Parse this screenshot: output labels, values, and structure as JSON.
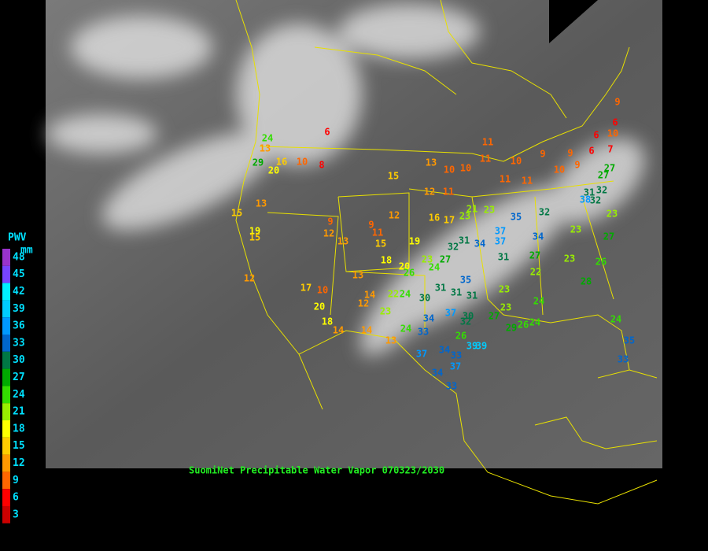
{
  "legend": {
    "title": "PWV",
    "unit": "mm",
    "scale": [
      {
        "value": 48,
        "color": "#9933cc"
      },
      {
        "value": 45,
        "color": "#7744ff"
      },
      {
        "value": 42,
        "color": "#00f0ff"
      },
      {
        "value": 39,
        "color": "#00ccff"
      },
      {
        "value": 36,
        "color": "#0099ff"
      },
      {
        "value": 33,
        "color": "#0066cc"
      },
      {
        "value": 30,
        "color": "#007744"
      },
      {
        "value": 27,
        "color": "#00aa00"
      },
      {
        "value": 24,
        "color": "#33dd00"
      },
      {
        "value": 21,
        "color": "#99ee00"
      },
      {
        "value": 18,
        "color": "#ffff00"
      },
      {
        "value": 15,
        "color": "#ffcc00"
      },
      {
        "value": 12,
        "color": "#ff9900"
      },
      {
        "value": 9,
        "color": "#ff6600"
      },
      {
        "value": 6,
        "color": "#ff0000"
      },
      {
        "value": 3,
        "color": "#cc0000"
      }
    ]
  },
  "caption": "SuomiNet Precipitable Water Vapor 070323/2030",
  "stations": [
    6,
    24,
    13,
    29,
    20,
    16,
    10,
    8,
    15,
    13,
    19,
    15,
    12,
    9,
    12,
    13,
    9,
    11,
    15,
    12,
    15,
    13,
    10,
    10,
    11,
    11,
    12,
    11,
    16,
    17,
    21,
    23,
    23,
    19,
    18,
    20,
    13,
    17,
    10,
    20,
    18,
    14,
    14,
    12,
    14,
    22,
    24,
    23,
    24,
    13,
    23,
    24,
    27,
    32,
    31,
    34,
    37,
    37,
    35,
    32,
    34,
    31,
    27,
    23,
    23,
    31,
    32,
    38,
    32,
    23,
    27,
    26,
    28,
    22,
    23,
    24,
    23,
    27,
    29,
    24,
    26,
    35,
    31,
    30,
    31,
    31,
    37,
    30,
    32,
    34,
    33,
    26,
    26,
    39,
    39,
    34,
    33,
    37,
    37,
    34,
    33,
    24,
    35,
    33,
    27,
    27,
    11,
    11,
    10,
    9,
    10,
    9,
    9,
    6,
    6,
    7,
    10,
    6,
    9
  ]
}
